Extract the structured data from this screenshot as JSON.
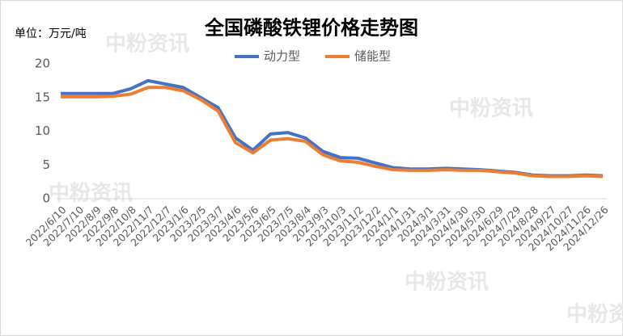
{
  "chart_data": {
    "type": "line",
    "title": "全国磷酸铁锂价格走势图",
    "unit_label": "单位：万元/吨",
    "watermark": "中粉资讯",
    "categories": [
      "2022/6/10",
      "2022/7/10",
      "2022/8/9",
      "2022/9/8",
      "2022/10/8",
      "2022/11/7",
      "2022/12/7",
      "2023/1/6",
      "2023/2/5",
      "2023/3/7",
      "2023/4/6",
      "2023/5/6",
      "2023/6/5",
      "2023/7/5",
      "2023/8/4",
      "2023/9/3",
      "2023/10/3",
      "2023/11/2",
      "2023/12/2",
      "2024/1/1",
      "2024/1/31",
      "2024/3/1",
      "2024/3/31",
      "2024/4/30",
      "2024/5/30",
      "2024/6/29",
      "2024/7/29",
      "2024/8/28",
      "2024/9/27",
      "2024/10/27",
      "2024/11/26",
      "2024/12/26"
    ],
    "series": [
      {
        "name": "动力型",
        "color": "#4472c4",
        "values": [
          15.6,
          15.6,
          15.6,
          15.6,
          16.3,
          17.5,
          17.0,
          16.5,
          15.0,
          13.5,
          9.0,
          7.2,
          9.6,
          9.8,
          9.0,
          7.0,
          6.1,
          6.0,
          5.3,
          4.6,
          4.4,
          4.4,
          4.5,
          4.4,
          4.3,
          4.1,
          3.9,
          3.5,
          3.4,
          3.4,
          3.5,
          3.4
        ]
      },
      {
        "name": "储能型",
        "color": "#ed7d31",
        "values": [
          15.1,
          15.1,
          15.1,
          15.2,
          15.5,
          16.5,
          16.5,
          16.0,
          14.7,
          13.0,
          8.3,
          6.8,
          8.7,
          8.9,
          8.5,
          6.5,
          5.6,
          5.4,
          4.8,
          4.3,
          4.2,
          4.2,
          4.3,
          4.2,
          4.2,
          4.0,
          3.8,
          3.4,
          3.3,
          3.3,
          3.4,
          3.3
        ]
      }
    ],
    "ylim": [
      0,
      20
    ],
    "yticks": [
      0,
      5,
      10,
      15,
      20
    ],
    "grid": false,
    "legend": "top"
  }
}
